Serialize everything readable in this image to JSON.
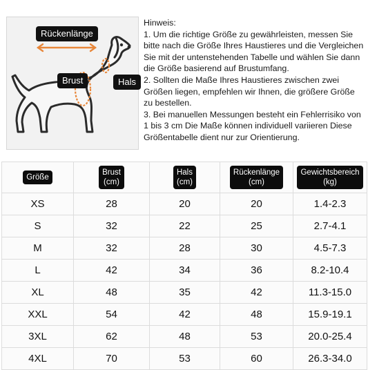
{
  "illustration": {
    "labels": {
      "back": "Rückenlänge",
      "chest": "Brust",
      "neck": "Hals"
    },
    "colors": {
      "accent": "#e8873a",
      "outline": "#2b2b2b",
      "label_bg": "#111111"
    }
  },
  "notice": {
    "title": "Hinweis:",
    "paragraphs": [
      "1. Um die richtige Größe zu gewährleisten, messen Sie bitte nach die Größe Ihres Haustieres und die Vergleichen Sie mit der untenstehenden Tabelle und wählen Sie dann die Größe basierend auf Brustumfang.",
      "2. Sollten die Maße Ihres Haustieres zwischen zwei Größen liegen, empfehlen wir Ihnen, die größere Größe zu bestellen.",
      "3. Bei manuellen Messungen besteht ein Fehlerrisiko von 1 bis 3 cm Die Maße können individuell variieren Diese Größentabelle dient nur zur Orientierung."
    ]
  },
  "table": {
    "headers": [
      {
        "label": "Größe",
        "unit": ""
      },
      {
        "label": "Brust",
        "unit": "(cm)"
      },
      {
        "label": "Hals",
        "unit": "(cm)"
      },
      {
        "label": "Rückenlänge",
        "unit": "(cm)"
      },
      {
        "label": "Gewichtsbereich",
        "unit": "(kg)"
      }
    ],
    "rows": [
      [
        "XS",
        "28",
        "20",
        "20",
        "1.4-2.3"
      ],
      [
        "S",
        "32",
        "22",
        "25",
        "2.7-4.1"
      ],
      [
        "M",
        "32",
        "28",
        "30",
        "4.5-7.3"
      ],
      [
        "L",
        "42",
        "34",
        "36",
        "8.2-10.4"
      ],
      [
        "XL",
        "48",
        "35",
        "42",
        "11.3-15.0"
      ],
      [
        "XXL",
        "54",
        "42",
        "48",
        "15.9-19.1"
      ],
      [
        "3XL",
        "62",
        "48",
        "53",
        "20.0-25.4"
      ],
      [
        "4XL",
        "70",
        "53",
        "60",
        "26.3-34.0"
      ]
    ]
  }
}
